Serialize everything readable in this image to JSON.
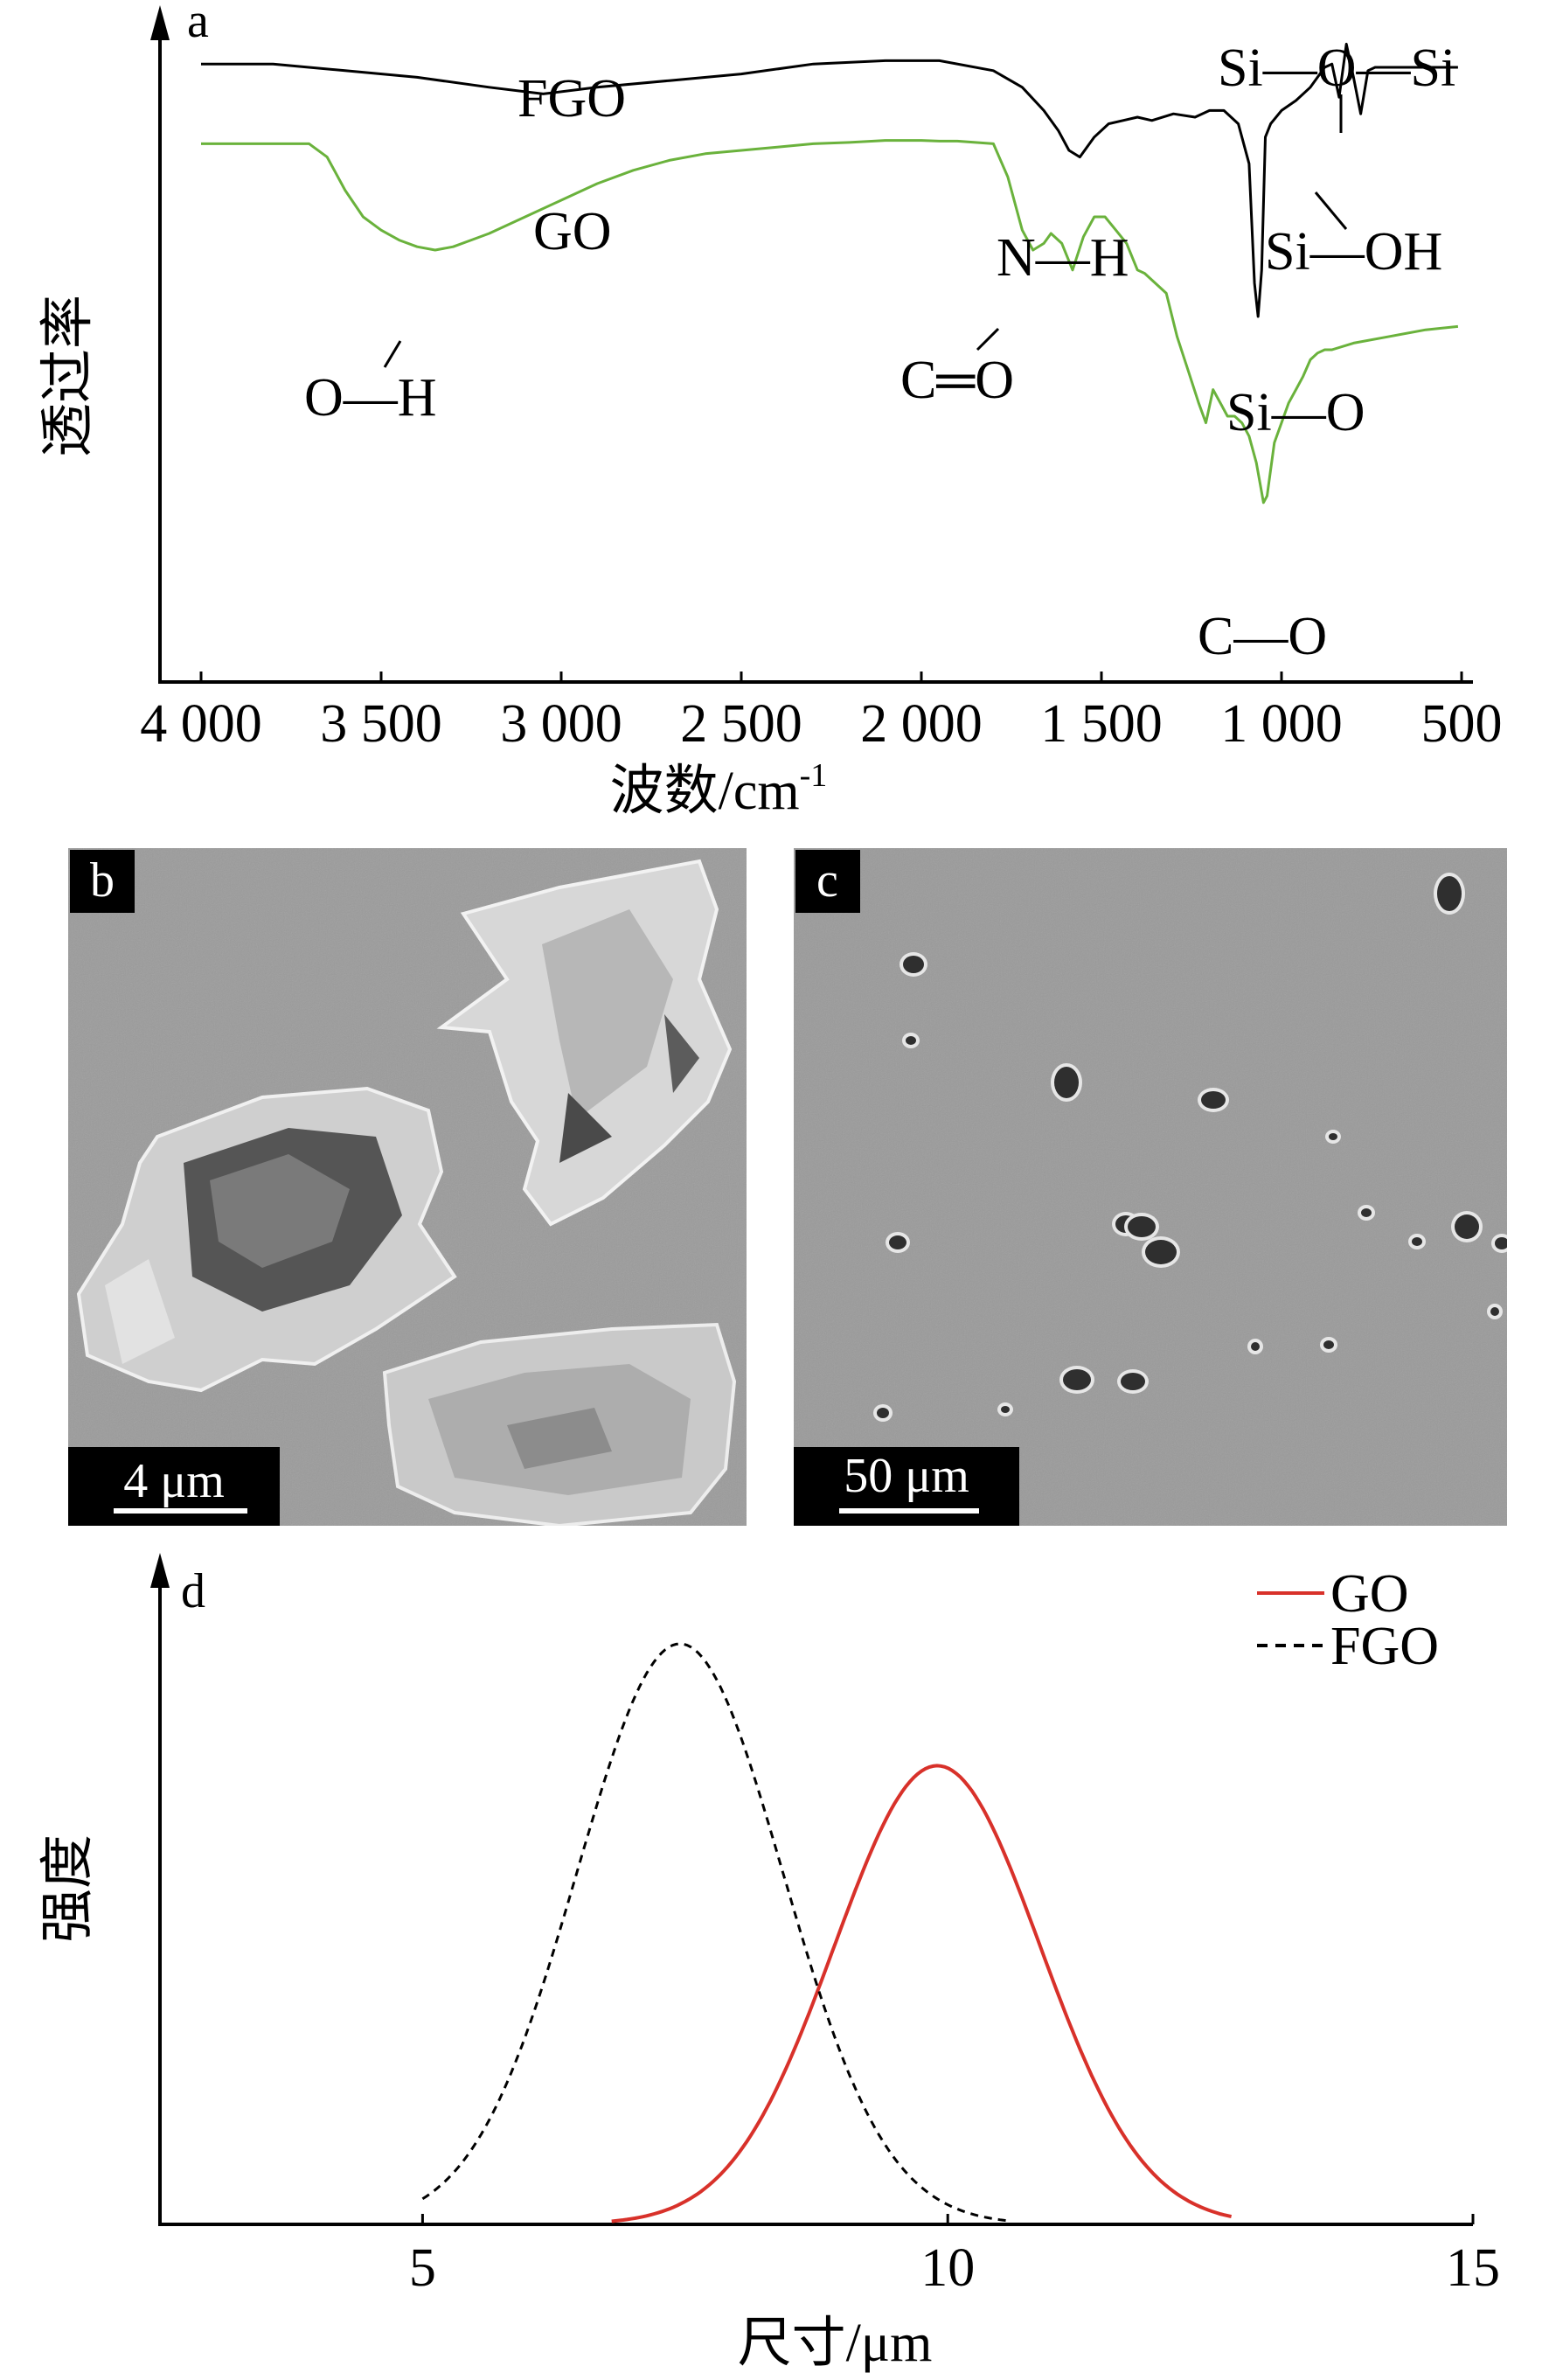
{
  "colors": {
    "fgo_ftir": "#000000",
    "go_ftir": "#6ab23c",
    "go_dist": "#d8312a",
    "fgo_dist": "#000000",
    "sem_bg": "#9a9a9a"
  },
  "chart_data": [
    {
      "panel": "a",
      "type": "line",
      "xlabel": "波数/cm⁻¹",
      "ylabel": "透过率",
      "xlim": [
        4000,
        500
      ],
      "xticks": [
        4000,
        3500,
        3000,
        2500,
        2000,
        1500,
        1000,
        500
      ],
      "xtick_labels": [
        "4 000",
        "3 500",
        "3 000",
        "2 500",
        "2 000",
        "1 500",
        "1 000",
        "500"
      ],
      "series": [
        {
          "name": "FGO",
          "color": "#000000",
          "x": [
            4000,
            3800,
            3600,
            3400,
            3200,
            3050,
            2900,
            2700,
            2500,
            2300,
            2100,
            1950,
            1800,
            1720,
            1660,
            1620,
            1590,
            1560,
            1520,
            1480,
            1440,
            1400,
            1360,
            1300,
            1240,
            1200,
            1160,
            1120,
            1090,
            1075,
            1065,
            1055,
            1045,
            1030,
            1000,
            960,
            920,
            880,
            860,
            840,
            820,
            800,
            780,
            760,
            740,
            700,
            600,
            510
          ],
          "y": [
            0.93,
            0.93,
            0.92,
            0.91,
            0.895,
            0.885,
            0.895,
            0.905,
            0.915,
            0.93,
            0.935,
            0.935,
            0.92,
            0.895,
            0.86,
            0.83,
            0.8,
            0.79,
            0.82,
            0.84,
            0.845,
            0.85,
            0.845,
            0.855,
            0.85,
            0.86,
            0.86,
            0.84,
            0.78,
            0.6,
            0.55,
            0.62,
            0.82,
            0.84,
            0.86,
            0.875,
            0.895,
            0.925,
            0.93,
            0.88,
            0.96,
            0.91,
            0.855,
            0.92,
            0.925,
            0.925,
            0.925,
            0.925
          ]
        },
        {
          "name": "GO",
          "color": "#6ab23c",
          "x": [
            4000,
            3900,
            3800,
            3700,
            3650,
            3600,
            3550,
            3500,
            3450,
            3400,
            3350,
            3300,
            3250,
            3200,
            3100,
            3000,
            2900,
            2800,
            2700,
            2600,
            2500,
            2400,
            2300,
            2200,
            2100,
            2000,
            1950,
            1900,
            1850,
            1800,
            1760,
            1720,
            1690,
            1660,
            1640,
            1610,
            1580,
            1550,
            1520,
            1490,
            1460,
            1430,
            1400,
            1380,
            1350,
            1320,
            1290,
            1260,
            1230,
            1210,
            1190,
            1170,
            1150,
            1130,
            1110,
            1090,
            1070,
            1060,
            1050,
            1040,
            1020,
            1000,
            980,
            960,
            940,
            920,
            900,
            880,
            860,
            800,
            700,
            600,
            510
          ],
          "y": [
            0.81,
            0.81,
            0.81,
            0.81,
            0.79,
            0.74,
            0.7,
            0.68,
            0.665,
            0.655,
            0.65,
            0.655,
            0.665,
            0.675,
            0.7,
            0.725,
            0.75,
            0.77,
            0.785,
            0.795,
            0.8,
            0.805,
            0.81,
            0.812,
            0.815,
            0.815,
            0.814,
            0.814,
            0.812,
            0.81,
            0.76,
            0.68,
            0.65,
            0.66,
            0.675,
            0.66,
            0.62,
            0.67,
            0.7,
            0.7,
            0.68,
            0.66,
            0.62,
            0.615,
            0.6,
            0.585,
            0.52,
            0.47,
            0.42,
            0.39,
            0.44,
            0.42,
            0.4,
            0.4,
            0.39,
            0.37,
            0.33,
            0.3,
            0.27,
            0.28,
            0.36,
            0.39,
            0.42,
            0.44,
            0.46,
            0.485,
            0.495,
            0.5,
            0.5,
            0.51,
            0.52,
            0.53,
            0.535
          ]
        }
      ],
      "annotations": [
        {
          "text": "FGO"
        },
        {
          "text": "GO"
        },
        {
          "text": "O—H"
        },
        {
          "text": "C═O"
        },
        {
          "text": "N—H"
        },
        {
          "text": "Si—O—Si"
        },
        {
          "text": "Si—OH"
        },
        {
          "text": "Si—O"
        },
        {
          "text": "C—O"
        }
      ]
    },
    {
      "panel": "d",
      "type": "line",
      "xlabel": "尺寸/μm",
      "ylabel": "强度",
      "xlim": [
        2.5,
        15
      ],
      "xticks": [
        5,
        10,
        15
      ],
      "legend_position": "top-right",
      "series": [
        {
          "name": "GO",
          "style": "solid",
          "color": "#d8312a",
          "mean": 9.9,
          "sigma": 0.98,
          "range": [
            6.8,
            12.7
          ],
          "peak": 0.79
        },
        {
          "name": "FGO",
          "style": "dashed",
          "color": "#000000",
          "mean": 7.45,
          "sigma": 0.98,
          "range": [
            5.0,
            10.6
          ],
          "peak": 1.0
        }
      ]
    }
  ],
  "panels": {
    "a": {
      "label": "a"
    },
    "b": {
      "label": "b",
      "scale_bar": "4 μm"
    },
    "c": {
      "label": "c",
      "scale_bar": "50 μm"
    },
    "d": {
      "label": "d"
    }
  },
  "labels": {
    "a_fgo": "FGO",
    "a_go": "GO",
    "a_oh": "O—H",
    "a_co_double": "C═O",
    "a_nh": "N—H",
    "a_siosi": "Si—O—Si",
    "a_sioh": "Si—OH",
    "a_sio": "Si—O",
    "a_co": "C—O",
    "a_xlabel_main": "波数/cm",
    "a_xlabel_sup": "-1",
    "a_ylabel": "透过率",
    "d_xlabel": "尺寸/μm",
    "d_ylabel": "强度",
    "d_legend_go": "GO",
    "d_legend_fgo": "FGO"
  }
}
